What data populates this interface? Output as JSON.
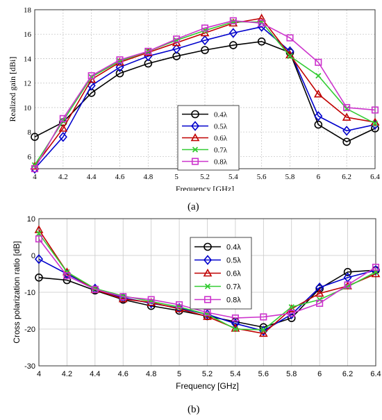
{
  "captions": [
    "(a)",
    "(b)"
  ],
  "chart_data": [
    {
      "type": "line",
      "panel": "(a)",
      "xlabel": "Frequency [GHz]",
      "ylabel": "Realized gain [dBi]",
      "xlim": [
        4,
        6.4
      ],
      "ylim": [
        5,
        18
      ],
      "xticks": [
        "4",
        "4.2",
        "4.4",
        "4.6",
        "4.8",
        "5",
        "5.2",
        "5.4",
        "5.6",
        "5.8",
        "6",
        "6.2",
        "6.4"
      ],
      "yticks": [
        "6",
        "8",
        "10",
        "12",
        "14",
        "16",
        "18"
      ],
      "grid": true,
      "legend": "center-right",
      "x": [
        4,
        4.2,
        4.4,
        4.6,
        4.8,
        5,
        5.2,
        5.4,
        5.6,
        5.8,
        6,
        6.2,
        6.4
      ],
      "series": [
        {
          "name": "0.4λ",
          "color": "#000000",
          "marker": "circle",
          "values": [
            7.6,
            8.8,
            11.2,
            12.8,
            13.6,
            14.2,
            14.7,
            15.1,
            15.4,
            14.5,
            8.6,
            7.2,
            8.3
          ]
        },
        {
          "name": "0.5λ",
          "color": "#0000cc",
          "marker": "diamond",
          "values": [
            5.0,
            7.6,
            11.8,
            13.3,
            14.2,
            14.8,
            15.5,
            16.1,
            16.6,
            14.6,
            9.3,
            8.1,
            8.6
          ]
        },
        {
          "name": "0.6λ",
          "color": "#c00000",
          "marker": "triangle",
          "values": [
            5.2,
            8.3,
            12.3,
            13.7,
            14.5,
            15.3,
            16.1,
            16.9,
            17.3,
            14.3,
            11.1,
            9.2,
            8.8
          ]
        },
        {
          "name": "0.7λ",
          "color": "#33cc33",
          "marker": "x",
          "values": [
            5.3,
            8.9,
            12.5,
            13.8,
            14.6,
            15.5,
            16.3,
            17.0,
            17.0,
            14.2,
            12.6,
            9.9,
            8.7
          ]
        },
        {
          "name": "0.8λ",
          "color": "#cc33cc",
          "marker": "square",
          "values": [
            5.0,
            9.1,
            12.6,
            13.9,
            14.6,
            15.6,
            16.5,
            17.1,
            16.9,
            15.7,
            13.7,
            10.0,
            9.8
          ]
        }
      ]
    },
    {
      "type": "line",
      "panel": "(b)",
      "xlabel": "Frequency [GHz]",
      "ylabel": "Cross polarization ratio [dB]",
      "xlim": [
        4,
        6.4
      ],
      "ylim": [
        -30,
        10
      ],
      "xticks": [
        "4",
        "4.2",
        "4.4",
        "4.6",
        "4.8",
        "5",
        "5.2",
        "5.4",
        "5.6",
        "5.8",
        "6",
        "6.2",
        "6.4"
      ],
      "yticks": [
        "-30",
        "-20",
        "-10",
        "0",
        "10"
      ],
      "grid": true,
      "legend": "top-center",
      "x": [
        4,
        4.2,
        4.4,
        4.6,
        4.8,
        5,
        5.2,
        5.4,
        5.6,
        5.8,
        6,
        6.2,
        6.4
      ],
      "series": [
        {
          "name": "0.4λ",
          "color": "#000000",
          "marker": "circle",
          "values": [
            -6.0,
            -6.7,
            -9.5,
            -12.0,
            -13.7,
            -15.0,
            -16.5,
            -18.0,
            -19.5,
            -17.0,
            -9.0,
            -4.5,
            -4.0
          ]
        },
        {
          "name": "0.5λ",
          "color": "#0000cc",
          "marker": "diamond",
          "values": [
            -1.0,
            -5.0,
            -9.0,
            -11.5,
            -13.0,
            -14.3,
            -16.0,
            -18.5,
            -20.5,
            -16.0,
            -8.7,
            -6.0,
            -4.0
          ]
        },
        {
          "name": "0.6λ",
          "color": "#c00000",
          "marker": "triangle",
          "values": [
            7.0,
            -4.5,
            -9.3,
            -11.8,
            -12.8,
            -14.5,
            -16.6,
            -19.8,
            -21.2,
            -14.5,
            -10.3,
            -8.3,
            -5.0
          ]
        },
        {
          "name": "0.7λ",
          "color": "#33cc33",
          "marker": "x",
          "values": [
            6.0,
            -4.5,
            -9.0,
            -11.0,
            -12.5,
            -14.0,
            -16.0,
            -20.0,
            -20.2,
            -14.0,
            -12.0,
            -8.5,
            -4.5
          ]
        },
        {
          "name": "0.8λ",
          "color": "#cc33cc",
          "marker": "square",
          "values": [
            4.5,
            -5.5,
            -9.2,
            -11.2,
            -12.0,
            -13.4,
            -15.5,
            -17.0,
            -16.7,
            -15.7,
            -13.0,
            -8.0,
            -3.2
          ]
        }
      ]
    }
  ]
}
